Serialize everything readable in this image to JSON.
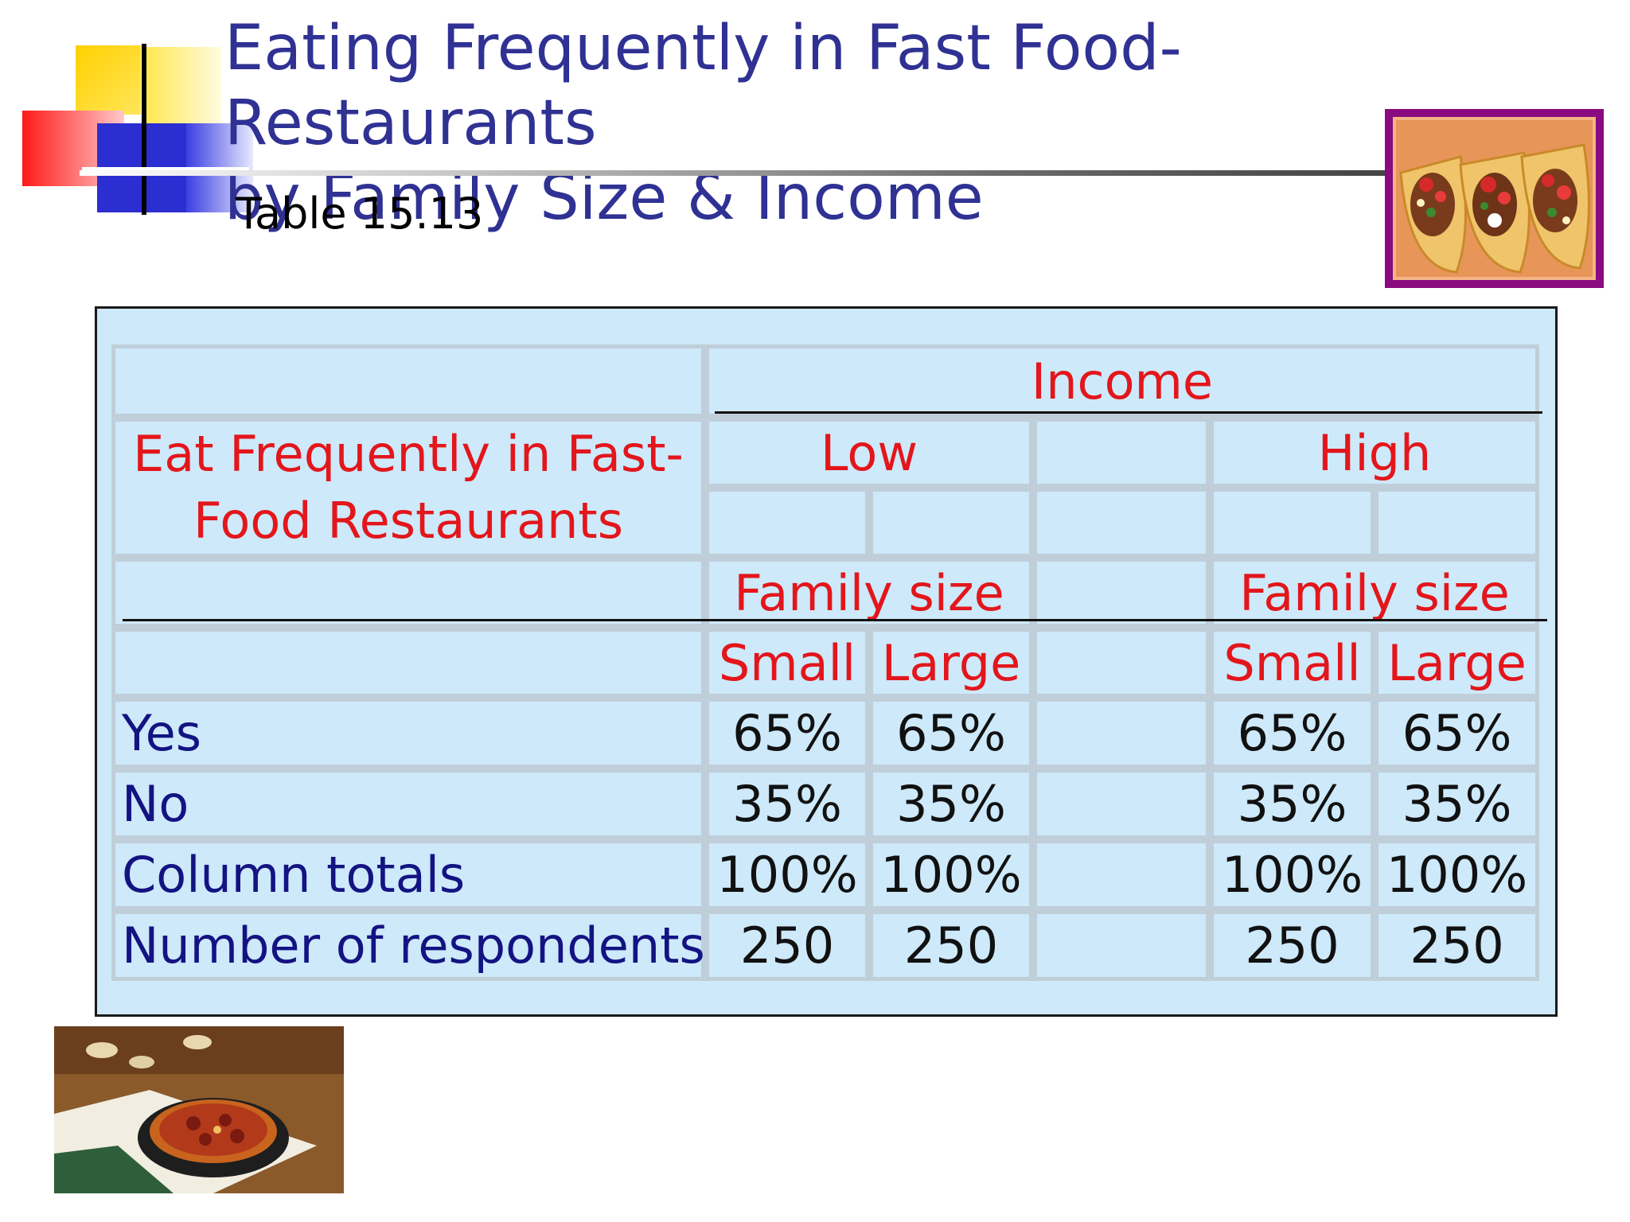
{
  "header": {
    "title_line1": "Eating Frequently in Fast Food-Restaurants",
    "title_line2": "by Family Size & Income",
    "subtitle": "Table 15.13"
  },
  "table": {
    "income_label": "Income",
    "row_header_line1": "Eat Frequently in Fast-",
    "row_header_line2": "Food Restaurants",
    "low_label": "Low",
    "high_label": "High",
    "family_size_label": "Family size",
    "column_labels": [
      "Small",
      "Large",
      "Small",
      "Large"
    ],
    "rows": [
      {
        "label": "Yes",
        "values": [
          "65%",
          "65%",
          "65%",
          "65%"
        ]
      },
      {
        "label": "No",
        "values": [
          "35%",
          "35%",
          "35%",
          "35%"
        ]
      },
      {
        "label": "Column totals",
        "values": [
          "100%",
          "100%",
          "100%",
          "100%"
        ]
      },
      {
        "label": "Number of respondents",
        "values": [
          "250",
          "250",
          "250",
          "250"
        ]
      }
    ]
  },
  "colors": {
    "title": "#2f3193",
    "header_text": "#e3161b",
    "row_label_text": "#131382",
    "panel_background": "#cde9fa"
  },
  "images": [
    "taco-photo",
    "pizza-photo"
  ]
}
